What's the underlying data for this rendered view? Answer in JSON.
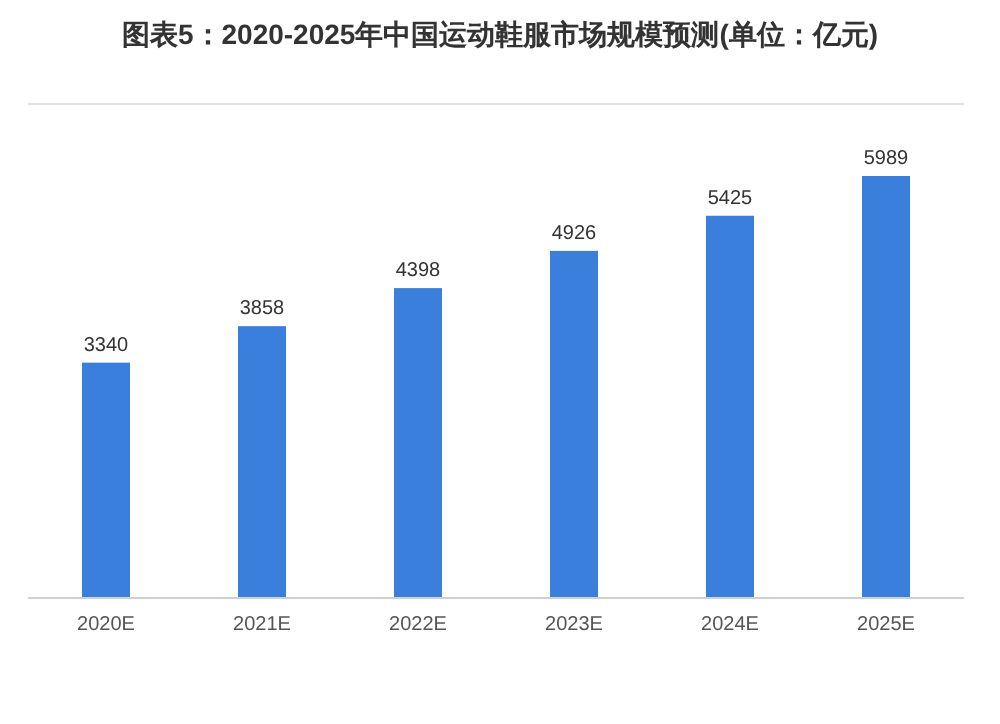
{
  "chart_data": {
    "type": "bar",
    "title": "图表5：2020-2025年中国运动鞋服市场规模预测(单位：亿元)",
    "categories": [
      "2020E",
      "2021E",
      "2022E",
      "2023E",
      "2024E",
      "2025E"
    ],
    "values": [
      3340,
      3858,
      4398,
      4926,
      5425,
      5989
    ],
    "color": "#3a7fdc",
    "data_labels": true
  }
}
